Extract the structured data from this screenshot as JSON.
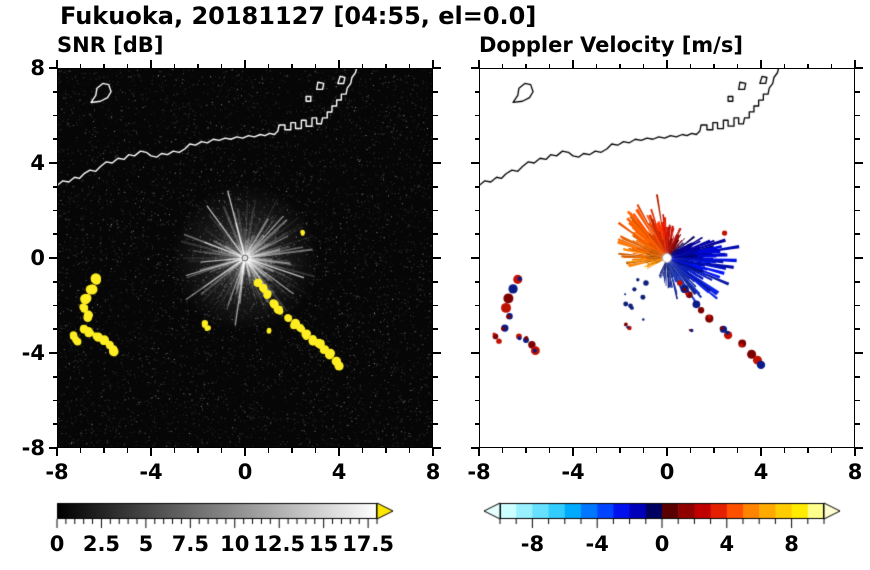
{
  "title": "Fukuoka, 20181127 [04:55, el=0.0]",
  "panels": {
    "left": {
      "subtitle": "SNR [dB]"
    },
    "right": {
      "subtitle": "Doppler Velocity [m/s]"
    }
  },
  "chart_data": {
    "type": "heatmap",
    "suptitle": "Fukuoka, 20181127 [04:55, el=0.0]",
    "xlim": [
      -8,
      8
    ],
    "ylim": [
      -8,
      8
    ],
    "xticks": [
      -8,
      -4,
      0,
      4,
      8
    ],
    "yticks": [
      -8,
      -4,
      0,
      4,
      8
    ],
    "xtick_labels": [
      "-8",
      "-4",
      "0",
      "4",
      "8"
    ],
    "ytick_labels": [
      "-8",
      "-4",
      "0",
      "4",
      "8"
    ],
    "minor_step": 1,
    "radar_center": [
      0,
      0
    ],
    "coastline_polylines": [
      [
        [
          -8.0,
          3.05
        ],
        [
          -7.75,
          3.25
        ],
        [
          -7.5,
          3.2
        ],
        [
          -7.25,
          3.4
        ],
        [
          -7.05,
          3.35
        ],
        [
          -6.85,
          3.55
        ],
        [
          -6.6,
          3.7
        ],
        [
          -6.35,
          3.65
        ],
        [
          -6.15,
          3.85
        ],
        [
          -5.9,
          4.05
        ],
        [
          -5.65,
          4.0
        ],
        [
          -5.4,
          4.2
        ],
        [
          -5.15,
          4.15
        ],
        [
          -4.95,
          4.35
        ],
        [
          -4.7,
          4.3
        ],
        [
          -4.45,
          4.5
        ],
        [
          -4.2,
          4.45
        ],
        [
          -4.0,
          4.3
        ],
        [
          -3.75,
          4.25
        ],
        [
          -3.55,
          4.4
        ],
        [
          -3.3,
          4.35
        ],
        [
          -3.05,
          4.5
        ],
        [
          -2.8,
          4.45
        ],
        [
          -2.55,
          4.6
        ],
        [
          -2.35,
          4.8
        ],
        [
          -2.1,
          4.75
        ],
        [
          -1.85,
          4.9
        ],
        [
          -1.6,
          4.85
        ],
        [
          -1.35,
          5.0
        ],
        [
          -1.1,
          4.95
        ],
        [
          -0.85,
          5.05
        ],
        [
          -0.6,
          5.0
        ],
        [
          -0.35,
          5.1
        ],
        [
          -0.1,
          5.05
        ],
        [
          0.15,
          5.15
        ],
        [
          0.4,
          5.1
        ],
        [
          0.65,
          5.2
        ],
        [
          0.85,
          5.15
        ],
        [
          1.05,
          5.25
        ],
        [
          1.25,
          5.2
        ],
        [
          1.4,
          5.35
        ],
        [
          1.45,
          5.6
        ],
        [
          1.7,
          5.6
        ],
        [
          1.7,
          5.4
        ],
        [
          1.95,
          5.4
        ],
        [
          1.95,
          5.7
        ],
        [
          2.15,
          5.7
        ],
        [
          2.15,
          5.45
        ],
        [
          2.4,
          5.45
        ],
        [
          2.4,
          5.8
        ],
        [
          2.6,
          5.8
        ],
        [
          2.6,
          5.55
        ],
        [
          2.85,
          5.55
        ],
        [
          2.85,
          5.9
        ],
        [
          3.05,
          5.9
        ],
        [
          3.05,
          5.65
        ],
        [
          3.25,
          5.65
        ],
        [
          3.3,
          5.9
        ],
        [
          3.5,
          5.9
        ],
        [
          3.5,
          6.15
        ],
        [
          3.7,
          6.15
        ],
        [
          3.7,
          6.4
        ],
        [
          3.9,
          6.4
        ],
        [
          3.9,
          6.65
        ],
        [
          4.1,
          6.65
        ],
        [
          4.1,
          6.9
        ],
        [
          4.3,
          6.9
        ],
        [
          4.35,
          7.15
        ],
        [
          4.5,
          7.35
        ],
        [
          4.55,
          7.6
        ],
        [
          4.7,
          7.8
        ],
        [
          4.75,
          8.0
        ]
      ]
    ],
    "coastline_polygons": [
      [
        [
          -6.55,
          6.55
        ],
        [
          -6.35,
          6.85
        ],
        [
          -6.3,
          7.15
        ],
        [
          -6.05,
          7.35
        ],
        [
          -5.8,
          7.3
        ],
        [
          -5.7,
          7.0
        ],
        [
          -5.85,
          6.75
        ],
        [
          -6.15,
          6.6
        ]
      ],
      [
        [
          3.05,
          7.1
        ],
        [
          3.3,
          7.1
        ],
        [
          3.35,
          7.35
        ],
        [
          3.1,
          7.4
        ]
      ],
      [
        [
          3.95,
          7.35
        ],
        [
          4.2,
          7.35
        ],
        [
          4.25,
          7.6
        ],
        [
          4.05,
          7.65
        ]
      ],
      [
        [
          2.6,
          6.6
        ],
        [
          2.8,
          6.6
        ],
        [
          2.8,
          6.8
        ],
        [
          2.6,
          6.8
        ]
      ]
    ],
    "echo_blobs": [
      {
        "w": 0.17,
        "pts": [
          [
            -6.35,
            -0.9
          ],
          [
            -6.55,
            -1.3
          ],
          [
            -6.75,
            -1.7
          ],
          [
            -6.85,
            -2.1
          ],
          [
            -6.7,
            -2.45
          ]
        ]
      },
      {
        "w": 0.15,
        "pts": [
          [
            -6.9,
            -2.95
          ],
          [
            -6.6,
            -3.15
          ],
          [
            -6.3,
            -3.3
          ],
          [
            -6.0,
            -3.45
          ],
          [
            -5.75,
            -3.65
          ],
          [
            -5.6,
            -3.9
          ]
        ]
      },
      {
        "w": 0.12,
        "pts": [
          [
            -7.3,
            -3.3
          ],
          [
            -7.15,
            -3.5
          ]
        ]
      },
      {
        "w": 0.14,
        "pts": [
          [
            0.55,
            -1.05
          ],
          [
            0.75,
            -1.3
          ],
          [
            0.95,
            -1.55
          ]
        ]
      },
      {
        "w": 0.13,
        "pts": [
          [
            1.25,
            -1.95
          ],
          [
            1.45,
            -2.2
          ]
        ]
      },
      {
        "w": 0.15,
        "pts": [
          [
            1.8,
            -2.55
          ],
          [
            2.1,
            -2.8
          ],
          [
            2.4,
            -3.0
          ]
        ]
      },
      {
        "w": 0.16,
        "pts": [
          [
            2.6,
            -3.25
          ],
          [
            2.9,
            -3.45
          ],
          [
            3.2,
            -3.6
          ]
        ]
      },
      {
        "w": 0.15,
        "pts": [
          [
            3.35,
            -3.85
          ],
          [
            3.6,
            -4.05
          ],
          [
            3.85,
            -4.3
          ],
          [
            4.0,
            -4.5
          ]
        ]
      },
      {
        "w": 0.1,
        "pts": [
          [
            -1.75,
            -2.8
          ],
          [
            -1.6,
            -2.95
          ]
        ]
      },
      {
        "w": 0.09,
        "pts": [
          [
            2.45,
            1.05
          ]
        ]
      },
      {
        "w": 0.09,
        "pts": [
          [
            1.05,
            -3.05
          ]
        ]
      }
    ],
    "panels": [
      {
        "name": "snr",
        "title": "SNR [dB]",
        "background": "#060606",
        "coast_color": "#ffffff",
        "echo_color": "#ffee22",
        "noise_specks": 15000,
        "streaks": {
          "count": 170,
          "min_r": 0.5,
          "max_r": 3.1
        },
        "colorbar": {
          "range": [
            0,
            18
          ],
          "ticks": [
            0,
            2.5,
            5,
            7.5,
            10,
            12.5,
            15,
            17.5
          ],
          "tick_labels": [
            "0",
            "2.5",
            "5",
            "7.5",
            "10",
            "12.5",
            "15",
            "17.5"
          ],
          "minor_step": 0.5,
          "gradient": [
            [
              0,
              "#000000"
            ],
            [
              1,
              "#ffffff"
            ]
          ],
          "arrow_right": "#ffe800"
        }
      },
      {
        "name": "velocity",
        "title": "Doppler Velocity [m/s]",
        "background": "#ffffff",
        "coast_color": "#000000",
        "blob_colors": [
          "#c01000",
          "#0a1a86",
          "#7d0000"
        ],
        "fan": {
          "segments": [
            {
              "a0": 242,
              "a1": 258,
              "c": "#ff8a00",
              "rmin": 0.4,
              "rmax": 1.1
            },
            {
              "a0": 258,
              "a1": 272,
              "c": "#ff7d00",
              "rmin": 0.5,
              "rmax": 1.9
            },
            {
              "a0": 272,
              "a1": 288,
              "c": "#ff7000",
              "rmin": 0.6,
              "rmax": 2.1
            },
            {
              "a0": 288,
              "a1": 305,
              "c": "#ff6a00",
              "rmin": 1.0,
              "rmax": 2.6
            },
            {
              "a0": 305,
              "a1": 322,
              "c": "#ff5c00",
              "rmin": 1.1,
              "rmax": 2.7
            },
            {
              "a0": 322,
              "a1": 338,
              "c": "#ff4a00",
              "rmin": 1.0,
              "rmax": 2.5
            },
            {
              "a0": 338,
              "a1": 352,
              "c": "#f03000",
              "rmin": 0.9,
              "rmax": 2.2
            },
            {
              "a0": 352,
              "a1": 363,
              "c": "#e01800",
              "rmin": 0.8,
              "rmax": 1.9
            },
            {
              "a0": 3,
              "a1": 18,
              "c": "#cc0f00",
              "rmin": 0.7,
              "rmax": 1.7
            },
            {
              "a0": 18,
              "a1": 32,
              "c": "#a50500",
              "rmin": 0.6,
              "rmax": 1.4
            },
            {
              "a0": 32,
              "a1": 45,
              "c": "#6f0012",
              "rmin": 0.5,
              "rmax": 1.2
            },
            {
              "a0": 45,
              "a1": 58,
              "c": "#10006e",
              "rmin": 0.5,
              "rmax": 1.5
            },
            {
              "a0": 58,
              "a1": 75,
              "c": "#0400a0",
              "rmin": 0.7,
              "rmax": 2.2
            },
            {
              "a0": 75,
              "a1": 92,
              "c": "#0008c0",
              "rmin": 0.9,
              "rmax": 2.6
            },
            {
              "a0": 92,
              "a1": 112,
              "c": "#0010cf",
              "rmin": 1.0,
              "rmax": 3.1
            },
            {
              "a0": 112,
              "a1": 132,
              "c": "#0a1ec4",
              "rmin": 0.9,
              "rmax": 2.9
            },
            {
              "a0": 132,
              "a1": 150,
              "c": "#1530bb",
              "rmin": 0.7,
              "rmax": 2.3
            },
            {
              "a0": 150,
              "a1": 168,
              "c": "#2038ad",
              "rmin": 0.5,
              "rmax": 1.9
            },
            {
              "a0": 168,
              "a1": 186,
              "c": "#1b2d9e",
              "rmin": 0.4,
              "rmax": 1.5
            },
            {
              "a0": 186,
              "a1": 205,
              "c": "#152585",
              "rmin": 0.3,
              "rmax": 1.0
            }
          ]
        },
        "colorbar": {
          "range": [
            -10,
            10
          ],
          "ticks": [
            -8,
            -4,
            0,
            4,
            8
          ],
          "tick_labels": [
            "-8",
            "-4",
            "0",
            "4",
            "8"
          ],
          "minor_step": 1,
          "cells": [
            "#ccffff",
            "#99f0ff",
            "#66e0ff",
            "#33ccff",
            "#00aaff",
            "#0077ff",
            "#0044ff",
            "#0011ee",
            "#0000bb",
            "#000060",
            "#5a0000",
            "#900000",
            "#c00000",
            "#e52000",
            "#ff5000",
            "#ff8400",
            "#ffaa00",
            "#ffcc00",
            "#ffec00",
            "#ffff8c"
          ],
          "arrow_left": "#e6ffff",
          "arrow_right": "#ffffd2"
        }
      }
    ]
  }
}
